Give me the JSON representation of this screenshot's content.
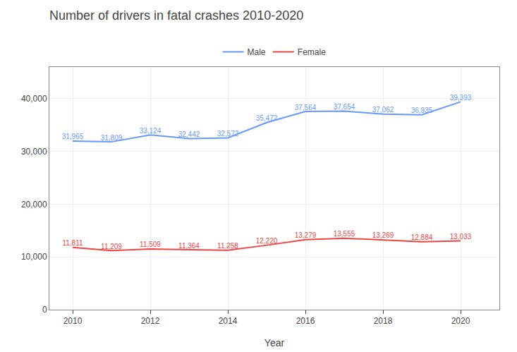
{
  "chart_data": {
    "type": "line",
    "title": "Number of drivers in fatal crashes 2010-2020",
    "xlabel": "Year",
    "x": [
      2010,
      2011,
      2012,
      2013,
      2014,
      2015,
      2016,
      2017,
      2018,
      2019,
      2020
    ],
    "series": [
      {
        "name": "Male",
        "color": "#6699ff",
        "values": [
          31965,
          31809,
          33124,
          32442,
          32572,
          35472,
          37564,
          37654,
          37062,
          36935,
          39393
        ],
        "value_labels": [
          "31,965",
          "31,809",
          "33,124",
          "32,442",
          "32,572",
          "35,472",
          "37,564",
          "37,654",
          "37,062",
          "36,935",
          "39,393"
        ]
      },
      {
        "name": "Female",
        "color": "#ee4444",
        "values": [
          11811,
          11209,
          11509,
          11364,
          11258,
          12220,
          13279,
          13555,
          13269,
          12884,
          13033
        ],
        "value_labels": [
          "11,811",
          "11,209",
          "11,509",
          "11,364",
          "11,258",
          "12,220",
          "13,279",
          "13,555",
          "13,269",
          "12,884",
          "13,033"
        ]
      }
    ],
    "xlim": [
      2009.4,
      2021.0
    ],
    "xticks": [
      2010,
      2012,
      2014,
      2016,
      2018,
      2020
    ],
    "ylim": [
      0,
      46000
    ],
    "yticks": [
      0,
      {
        "value": 10000,
        "label": "10,000"
      },
      {
        "value": 20000,
        "label": "20,000"
      },
      {
        "value": 30000,
        "label": "30,000"
      },
      {
        "value": 40000,
        "label": "40,000"
      }
    ],
    "grid": true,
    "legend": "top",
    "data_labels": true
  }
}
